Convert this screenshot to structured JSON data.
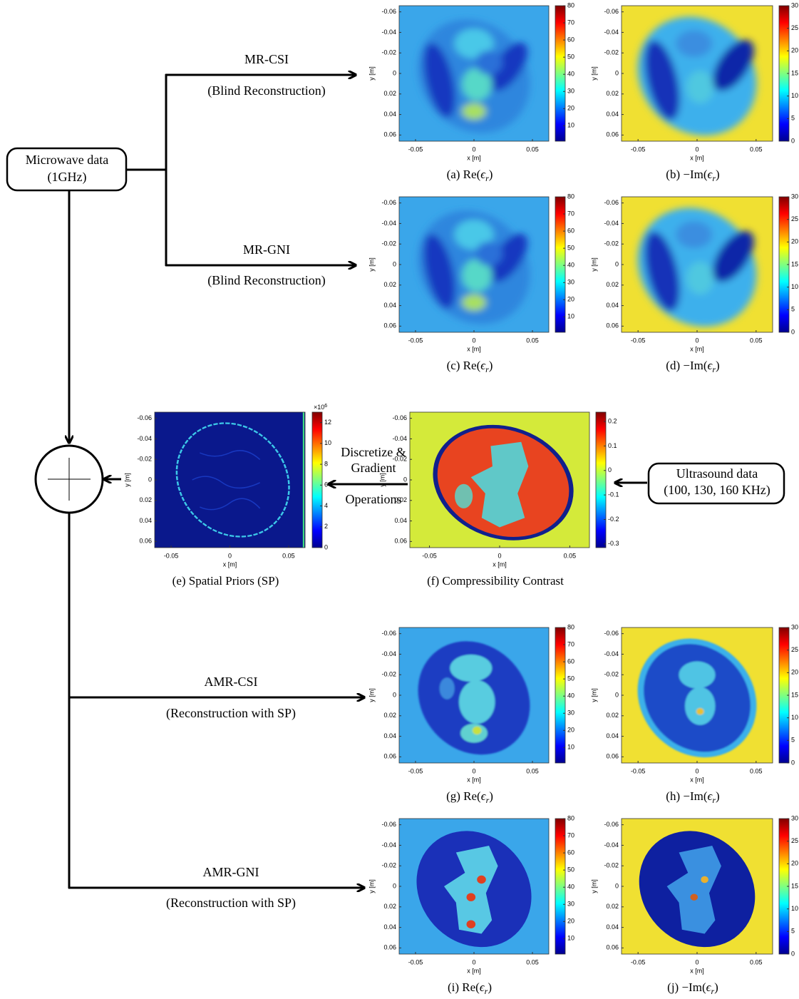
{
  "nodes": {
    "microwave": {
      "lines": [
        "Microwave data",
        "(1GHz)"
      ]
    },
    "ultrasound": {
      "lines": [
        "Ultrasound data",
        "(100, 130, 160 KHz)"
      ]
    }
  },
  "edges": [
    {
      "label": "MR-CSI",
      "sublabel": "(Blind Reconstruction)"
    },
    {
      "label": "MR-GNI",
      "sublabel": "(Blind Reconstruction)"
    },
    {
      "label": "AMR-CSI",
      "sublabel": "(Reconstruction with SP)"
    },
    {
      "label": "AMR-GNI",
      "sublabel": "(Reconstruction with SP)"
    }
  ],
  "operation": {
    "lines": [
      "Discretize &",
      "Gradient",
      "Operations"
    ]
  },
  "axis": {
    "xlabel": "x [m]",
    "ylabel": "y [m]",
    "xlim": [
      -0.064,
      0.064
    ],
    "ylim": [
      -0.066,
      0.066
    ],
    "xticks": [
      -0.05,
      0,
      0.05
    ],
    "yticks": [
      -0.06,
      -0.04,
      -0.02,
      0,
      0.02,
      0.04,
      0.06
    ]
  },
  "panels": [
    {
      "caption": {
        "prefix": "(a) Re(",
        "symbol": "ϵ",
        "sub": "r",
        "suffix": ")"
      },
      "clim": [
        1,
        80
      ],
      "cticks": [
        10,
        20,
        30,
        40,
        50,
        60,
        70,
        80
      ]
    },
    {
      "caption": {
        "prefix": "(b) −Im(",
        "symbol": "ϵ",
        "sub": "r",
        "suffix": ")"
      },
      "clim": [
        0,
        30
      ],
      "cticks": [
        0,
        5,
        10,
        15,
        20,
        25,
        30
      ]
    },
    {
      "caption": {
        "prefix": "(c) Re(",
        "symbol": "ϵ",
        "sub": "r",
        "suffix": ")"
      },
      "clim": [
        1,
        80
      ],
      "cticks": [
        10,
        20,
        30,
        40,
        50,
        60,
        70,
        80
      ]
    },
    {
      "caption": {
        "prefix": "(d) −Im(",
        "symbol": "ϵ",
        "sub": "r",
        "suffix": ")"
      },
      "clim": [
        0,
        30
      ],
      "cticks": [
        0,
        5,
        10,
        15,
        20,
        25,
        30
      ]
    },
    {
      "caption": {
        "prefix": "(e) Spatial Priors (SP)"
      },
      "clim": [
        0,
        13
      ],
      "cticks": [
        0,
        2,
        4,
        6,
        8,
        10,
        12
      ],
      "cexponent": {
        "base": "×10",
        "power": "6"
      }
    },
    {
      "caption": {
        "prefix": "(f) Compressibility Contrast"
      },
      "clim": [
        -0.315,
        0.238
      ],
      "cticks": [
        -0.3,
        -0.2,
        -0.1,
        0,
        0.1,
        0.2
      ]
    },
    {
      "caption": {
        "prefix": "(g) Re(",
        "symbol": "ϵ",
        "sub": "r",
        "suffix": ")"
      },
      "clim": [
        1,
        80
      ],
      "cticks": [
        10,
        20,
        30,
        40,
        50,
        60,
        70,
        80
      ]
    },
    {
      "caption": {
        "prefix": "(h) −Im(",
        "symbol": "ϵ",
        "sub": "r",
        "suffix": ")"
      },
      "clim": [
        0,
        30
      ],
      "cticks": [
        0,
        5,
        10,
        15,
        20,
        25,
        30
      ]
    },
    {
      "caption": {
        "prefix": "(i) Re(",
        "symbol": "ϵ",
        "sub": "r",
        "suffix": ")"
      },
      "clim": [
        1,
        80
      ],
      "cticks": [
        10,
        20,
        30,
        40,
        50,
        60,
        70,
        80
      ]
    },
    {
      "caption": {
        "prefix": "(j) −Im(",
        "symbol": "ϵ",
        "sub": "r",
        "suffix": ")"
      },
      "clim": [
        0,
        30
      ],
      "cticks": [
        0,
        5,
        10,
        15,
        20,
        25,
        30
      ]
    }
  ]
}
